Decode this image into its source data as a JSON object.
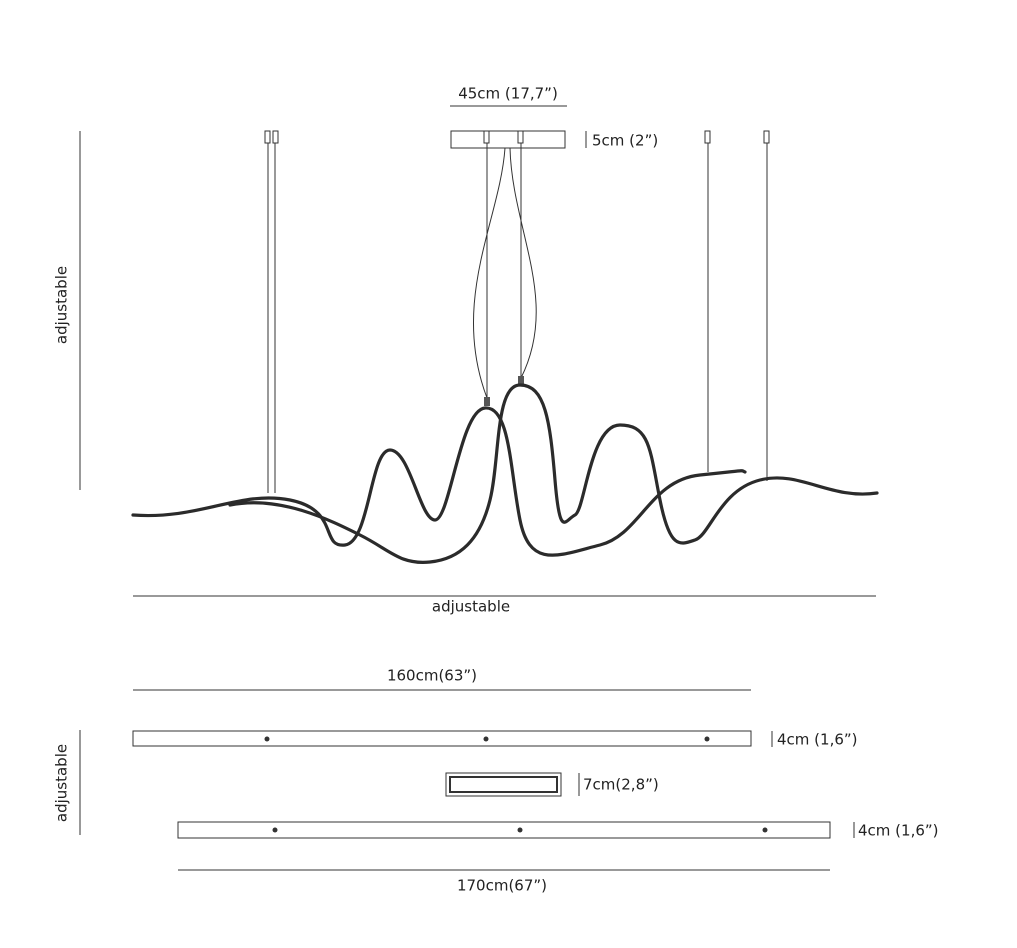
{
  "front_view": {
    "canopy_width": "45cm (17,7”)",
    "canopy_height": "5cm (2”)",
    "drop": "adjustable",
    "span": "adjustable"
  },
  "top_view": {
    "upper_length": "160cm(63”)",
    "upper_height": "4cm (1,6”)",
    "canopy_size": "7cm(2,8”)",
    "spacing": "adjustable",
    "lower_height": "4cm (1,6”)",
    "lower_length": "170cm(67”)"
  }
}
